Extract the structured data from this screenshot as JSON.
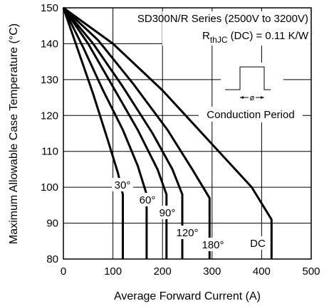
{
  "chart_data": {
    "type": "line",
    "xlabel": "Average Forward Current (A)",
    "ylabel": "Maximum Allowable Case Temperature (°C)",
    "xlim": [
      0,
      500
    ],
    "ylim": [
      80,
      150
    ],
    "x_ticks": [
      0,
      100,
      200,
      300,
      400,
      500
    ],
    "y_ticks": [
      80,
      90,
      100,
      110,
      120,
      130,
      140,
      150
    ],
    "grid": true,
    "annotations": {
      "series_title": "SD300N/R Series (2500V to 3200V)",
      "rth_prefix": "R",
      "rth_sub": "thJC",
      "rth_suffix": " (DC) = 0.11 K/W",
      "conduction_label": "Conduction Period",
      "phi_symbol": "ø"
    },
    "series": [
      {
        "name": "30°",
        "points": [
          [
            0,
            150
          ],
          [
            30,
            138
          ],
          [
            60,
            126
          ],
          [
            90,
            113
          ],
          [
            110,
            104
          ],
          [
            120,
            98
          ],
          [
            120,
            80
          ]
        ]
      },
      {
        "name": "60°",
        "points": [
          [
            0,
            150
          ],
          [
            40,
            139
          ],
          [
            80,
            127
          ],
          [
            120,
            116
          ],
          [
            150,
            106
          ],
          [
            168,
            98
          ],
          [
            168,
            80
          ]
        ]
      },
      {
        "name": "90°",
        "points": [
          [
            0,
            150
          ],
          [
            50,
            140
          ],
          [
            100,
            128
          ],
          [
            150,
            116
          ],
          [
            190,
            105
          ],
          [
            208,
            98
          ],
          [
            208,
            80
          ]
        ]
      },
      {
        "name": "120°",
        "points": [
          [
            0,
            150
          ],
          [
            60,
            140
          ],
          [
            120,
            128
          ],
          [
            180,
            115
          ],
          [
            220,
            105
          ],
          [
            240,
            98
          ],
          [
            240,
            80
          ]
        ]
      },
      {
        "name": "180°",
        "points": [
          [
            0,
            150
          ],
          [
            70,
            141
          ],
          [
            140,
            129
          ],
          [
            210,
            116
          ],
          [
            260,
            105
          ],
          [
            295,
            97
          ],
          [
            295,
            80
          ]
        ]
      },
      {
        "name": "DC",
        "points": [
          [
            0,
            150
          ],
          [
            100,
            140
          ],
          [
            200,
            127
          ],
          [
            300,
            112
          ],
          [
            380,
            100
          ],
          [
            420,
            91
          ],
          [
            420,
            80
          ]
        ]
      }
    ]
  }
}
